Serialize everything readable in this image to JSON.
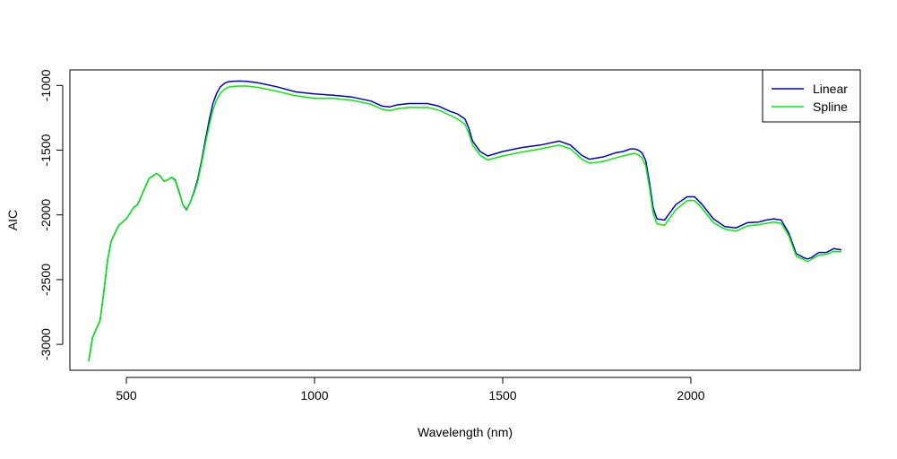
{
  "chart_data": {
    "type": "line",
    "title": "",
    "xlabel": "Wavelength (nm)",
    "ylabel": "AIC",
    "xlim": [
      350,
      2450
    ],
    "ylim": [
      -3200,
      -880
    ],
    "xticks": [
      500,
      1000,
      1500,
      2000
    ],
    "yticks": [
      -3000,
      -2500,
      -2000,
      -1500,
      -1000
    ],
    "xtick_labels": [
      "500",
      "1000",
      "1500",
      "2000"
    ],
    "ytick_labels": [
      "-3000",
      "-2500",
      "-2000",
      "-1500",
      "-1000"
    ],
    "legend": {
      "position": "top-right",
      "entries": [
        "Linear",
        "Spline"
      ]
    },
    "grid": false,
    "series": [
      {
        "name": "Linear",
        "color": "#0000cc",
        "x": [
          400,
          410,
          420,
          430,
          440,
          450,
          460,
          480,
          500,
          520,
          530,
          545,
          560,
          580,
          590,
          600,
          610,
          620,
          630,
          640,
          650,
          660,
          670,
          680,
          690,
          700,
          710,
          720,
          730,
          740,
          750,
          760,
          770,
          780,
          800,
          820,
          850,
          900,
          950,
          1000,
          1050,
          1100,
          1150,
          1180,
          1200,
          1220,
          1250,
          1300,
          1330,
          1360,
          1380,
          1400,
          1410,
          1420,
          1440,
          1460,
          1500,
          1550,
          1600,
          1650,
          1680,
          1710,
          1730,
          1750,
          1770,
          1800,
          1820,
          1840,
          1850,
          1860,
          1870,
          1880,
          1890,
          1900,
          1910,
          1930,
          1960,
          1990,
          2010,
          2030,
          2060,
          2090,
          2120,
          2150,
          2180,
          2200,
          2220,
          2240,
          2260,
          2280,
          2300,
          2310,
          2320,
          2340,
          2360,
          2380,
          2400
        ],
        "y": [
          -3130,
          -2950,
          -2880,
          -2820,
          -2600,
          -2350,
          -2200,
          -2080,
          -2030,
          -1940,
          -1920,
          -1820,
          -1720,
          -1680,
          -1700,
          -1740,
          -1730,
          -1710,
          -1730,
          -1820,
          -1920,
          -1960,
          -1900,
          -1820,
          -1720,
          -1580,
          -1420,
          -1270,
          -1140,
          -1060,
          -1010,
          -985,
          -972,
          -968,
          -966,
          -968,
          -980,
          -1010,
          -1050,
          -1065,
          -1075,
          -1090,
          -1120,
          -1160,
          -1165,
          -1150,
          -1140,
          -1140,
          -1160,
          -1200,
          -1220,
          -1260,
          -1330,
          -1430,
          -1510,
          -1545,
          -1510,
          -1480,
          -1460,
          -1430,
          -1460,
          -1540,
          -1570,
          -1560,
          -1550,
          -1520,
          -1510,
          -1490,
          -1490,
          -1500,
          -1520,
          -1580,
          -1750,
          -1950,
          -2030,
          -2040,
          -1920,
          -1860,
          -1860,
          -1920,
          -2030,
          -2090,
          -2100,
          -2060,
          -2055,
          -2040,
          -2030,
          -2040,
          -2140,
          -2300,
          -2330,
          -2340,
          -2330,
          -2290,
          -2290,
          -2260,
          -2270
        ]
      },
      {
        "name": "Spline",
        "color": "#00ee00",
        "x": [
          400,
          410,
          420,
          430,
          440,
          450,
          460,
          480,
          500,
          520,
          530,
          545,
          560,
          580,
          590,
          600,
          610,
          620,
          630,
          640,
          650,
          660,
          670,
          680,
          690,
          700,
          710,
          720,
          730,
          740,
          750,
          760,
          770,
          780,
          800,
          820,
          850,
          900,
          950,
          1000,
          1050,
          1100,
          1150,
          1180,
          1200,
          1220,
          1250,
          1300,
          1330,
          1360,
          1380,
          1400,
          1410,
          1420,
          1440,
          1460,
          1500,
          1550,
          1600,
          1650,
          1680,
          1710,
          1730,
          1750,
          1770,
          1800,
          1820,
          1840,
          1850,
          1860,
          1870,
          1880,
          1890,
          1900,
          1910,
          1930,
          1960,
          1990,
          2010,
          2030,
          2060,
          2090,
          2120,
          2150,
          2180,
          2200,
          2220,
          2240,
          2260,
          2280,
          2300,
          2310,
          2320,
          2340,
          2360,
          2380,
          2400
        ],
        "y": [
          -3130,
          -2950,
          -2880,
          -2820,
          -2600,
          -2350,
          -2200,
          -2080,
          -2030,
          -1940,
          -1920,
          -1820,
          -1720,
          -1680,
          -1700,
          -1740,
          -1730,
          -1710,
          -1735,
          -1825,
          -1920,
          -1955,
          -1900,
          -1830,
          -1740,
          -1600,
          -1450,
          -1310,
          -1190,
          -1110,
          -1060,
          -1030,
          -1015,
          -1008,
          -1005,
          -1005,
          -1015,
          -1045,
          -1080,
          -1100,
          -1100,
          -1115,
          -1145,
          -1185,
          -1195,
          -1180,
          -1170,
          -1170,
          -1190,
          -1230,
          -1260,
          -1300,
          -1370,
          -1460,
          -1540,
          -1575,
          -1545,
          -1515,
          -1490,
          -1460,
          -1490,
          -1570,
          -1600,
          -1595,
          -1585,
          -1560,
          -1545,
          -1530,
          -1525,
          -1535,
          -1560,
          -1620,
          -1790,
          -1990,
          -2070,
          -2080,
          -1960,
          -1890,
          -1890,
          -1950,
          -2060,
          -2110,
          -2125,
          -2085,
          -2075,
          -2065,
          -2055,
          -2065,
          -2160,
          -2320,
          -2345,
          -2360,
          -2345,
          -2310,
          -2305,
          -2280,
          -2285
        ]
      }
    ]
  }
}
